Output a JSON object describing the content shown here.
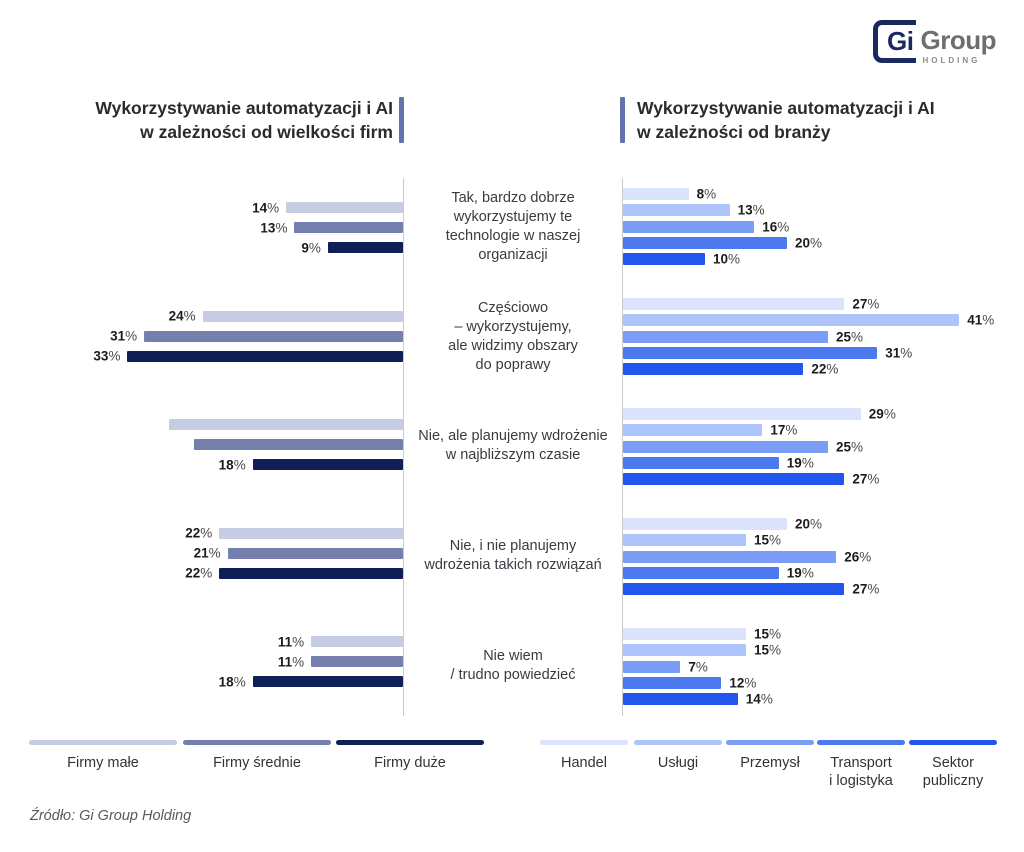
{
  "logo": {
    "gi": "Gi",
    "group": "Group",
    "holding": "HOLDING"
  },
  "left_panel": {
    "title_line1": "Wykorzystywanie automatyzacji i AI",
    "title_line2": "w zależności od wielkości firm"
  },
  "right_panel": {
    "title_line1": "Wykorzystywanie automatyzacji i AI",
    "title_line2": "w zależności od branży"
  },
  "categories": [
    [
      "Tak, bardzo dobrze",
      "wykorzystujemy te",
      "technologie w naszej",
      "organizacji"
    ],
    [
      "Częściowo",
      "– wykorzystujemy,",
      "ale widzimy obszary",
      "do poprawy"
    ],
    [
      "Nie, ale planujemy wdrożenie",
      "w najbliższym czasie"
    ],
    [
      "Nie, i nie planujemy",
      "wdrożenia takich rozwiązań"
    ],
    [
      "Nie wiem",
      "/ trudno powiedzieć"
    ]
  ],
  "chart_data": [
    {
      "type": "bar",
      "orientation": "horizontal-left",
      "title": "Wykorzystywanie automatyzacji i AI w zależności od wielkości firm",
      "unit": "%",
      "xlim": [
        0,
        41
      ],
      "grid": false,
      "legend_position": "bottom",
      "categories": [
        "Tak, bardzo dobrze wykorzystujemy te technologie w naszej organizacji",
        "Częściowo – wykorzystujemy, ale widzimy obszary do poprawy",
        "Nie, ale planujemy wdrożenie w najbliższym czasie",
        "Nie, i nie planujemy wdrożenia takich rozwiązań",
        "Nie wiem / trudno powiedzieć"
      ],
      "series": [
        {
          "name": "Firmy małe",
          "color": "#c6cce2",
          "values": [
            14,
            24,
            28,
            22,
            11
          ],
          "hidden_value_labels": [
            2
          ]
        },
        {
          "name": "Firmy średnie",
          "color": "#7480ab",
          "values": [
            13,
            31,
            25,
            21,
            11
          ],
          "hidden_value_labels": [
            2
          ]
        },
        {
          "name": "Firmy duże",
          "color": "#101f55",
          "values": [
            9,
            33,
            18,
            22,
            18
          ],
          "hidden_value_labels": []
        }
      ]
    },
    {
      "type": "bar",
      "orientation": "horizontal-right",
      "title": "Wykorzystywanie automatyzacji i AI w zależności od branży",
      "unit": "%",
      "xlim": [
        0,
        41
      ],
      "grid": false,
      "legend_position": "bottom",
      "categories": [
        "Tak, bardzo dobrze wykorzystujemy te technologie w naszej organizacji",
        "Częściowo – wykorzystujemy, ale widzimy obszary do poprawy",
        "Nie, ale planujemy wdrożenie w najbliższym czasie",
        "Nie, i nie planujemy wdrożenia takich rozwiązań",
        "Nie wiem / trudno powiedzieć"
      ],
      "series": [
        {
          "name": "Handel",
          "color": "#dbe4fc",
          "values": [
            8,
            27,
            29,
            20,
            15
          ],
          "hidden_value_labels": []
        },
        {
          "name": "Usługi",
          "color": "#adc4fa",
          "values": [
            13,
            41,
            17,
            15,
            15
          ],
          "hidden_value_labels": []
        },
        {
          "name": "Przemysł",
          "color": "#7c9df5",
          "values": [
            16,
            25,
            25,
            26,
            7
          ],
          "hidden_value_labels": []
        },
        {
          "name": "Transport i logistyka",
          "color": "#4d79ef",
          "values": [
            20,
            31,
            19,
            19,
            12
          ],
          "hidden_value_labels": []
        },
        {
          "name": "Sektor publiczny",
          "color": "#2257ee",
          "values": [
            10,
            22,
            27,
            27,
            14
          ],
          "hidden_value_labels": []
        }
      ]
    }
  ],
  "legend_left_labels": [
    [
      "Firmy małe"
    ],
    [
      "Firmy średnie"
    ],
    [
      "Firmy duże"
    ]
  ],
  "legend_right_labels": [
    [
      "Handel"
    ],
    [
      "Usługi"
    ],
    [
      "Przemysł"
    ],
    [
      "Transport",
      "i logistyka"
    ],
    [
      "Sektor",
      "publiczny"
    ]
  ],
  "footer": {
    "source": "Źródło: Gi Group Holding"
  },
  "colors": {
    "axis": "#cbcbcb",
    "accent_bar": "#6373a9",
    "title_text": "#2b2b2b",
    "category_text": "#3a3a42",
    "value_text": "#1c1c1c",
    "percent_sign": "#4a4a4a",
    "logo_navy": "#1b2a5e",
    "logo_gray": "#6d6e71"
  }
}
